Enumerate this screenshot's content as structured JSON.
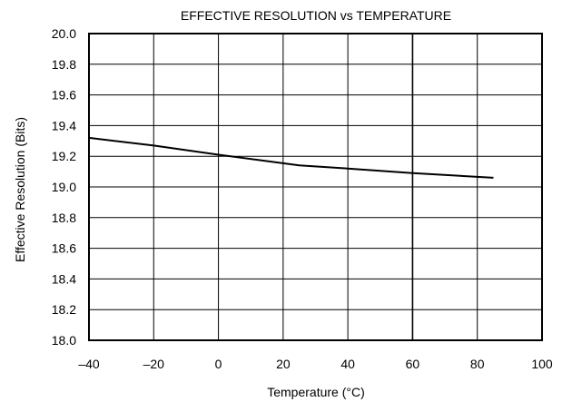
{
  "chart_data": {
    "type": "line",
    "title": "EFFECTIVE RESOLUTION vs TEMPERATURE",
    "xlabel": "Temperature (°C)",
    "ylabel": "Effective Resolution (Bits)",
    "xlim": [
      -40,
      100
    ],
    "ylim": [
      18.0,
      20.0
    ],
    "x_ticks": [
      -40,
      -20,
      0,
      20,
      40,
      60,
      80,
      100
    ],
    "x_tick_labels": [
      "–40",
      "–20",
      "0",
      "20",
      "40",
      "60",
      "80",
      "100"
    ],
    "y_ticks": [
      18.0,
      18.2,
      18.4,
      18.6,
      18.8,
      19.0,
      19.2,
      19.4,
      19.6,
      19.8,
      20.0
    ],
    "y_tick_labels": [
      "18.0",
      "18.2",
      "18.4",
      "18.6",
      "18.8",
      "19.0",
      "19.2",
      "19.4",
      "19.6",
      "19.8",
      "20.0"
    ],
    "grid": true,
    "series": [
      {
        "x": [
          -40,
          -20,
          0,
          25,
          40,
          60,
          85
        ],
        "y": [
          19.32,
          19.27,
          19.21,
          19.14,
          19.12,
          19.09,
          19.06
        ]
      }
    ]
  }
}
